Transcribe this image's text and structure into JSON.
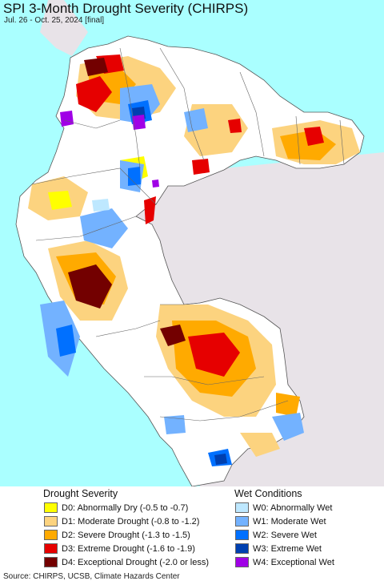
{
  "title": "SPI 3-Month Drought Severity (CHIRPS)",
  "subtitle": "Jul. 26 - Oct. 25, 2024 [final]",
  "legend": {
    "drought": {
      "heading": "Drought Severity",
      "items": [
        {
          "label": "D0: Abnormally Dry (-0.5 to -0.7)",
          "color": "#ffff00"
        },
        {
          "label": "D1: Moderate Drought (-0.8 to -1.2)",
          "color": "#fcd37f"
        },
        {
          "label": "D2: Severe Drought (-1.3 to -1.5)",
          "color": "#ffaa00"
        },
        {
          "label": "D3: Extreme Drought (-1.6 to -1.9)",
          "color": "#e60000"
        },
        {
          "label": "D4: Exceptional Drought (-2.0 or less)",
          "color": "#730000"
        }
      ]
    },
    "wet": {
      "heading": "Wet Conditions",
      "items": [
        {
          "label": "W0: Abnormally Wet",
          "color": "#bee8ff"
        },
        {
          "label": "W1: Moderate Wet",
          "color": "#73b2ff"
        },
        {
          "label": "W2: Severe Wet",
          "color": "#0070ff"
        },
        {
          "label": "W3: Extreme Wet",
          "color": "#0040b0"
        },
        {
          "label": "W4: Exceptional Wet",
          "color": "#a000e6"
        }
      ]
    }
  },
  "map_colors": {
    "ocean": "#aaffff",
    "outside_region": "#e8e3e8",
    "land_normal": "#ffffff",
    "border": "#555555"
  },
  "source": "Source: CHIRPS, UCSB, Climate Hazards Center"
}
